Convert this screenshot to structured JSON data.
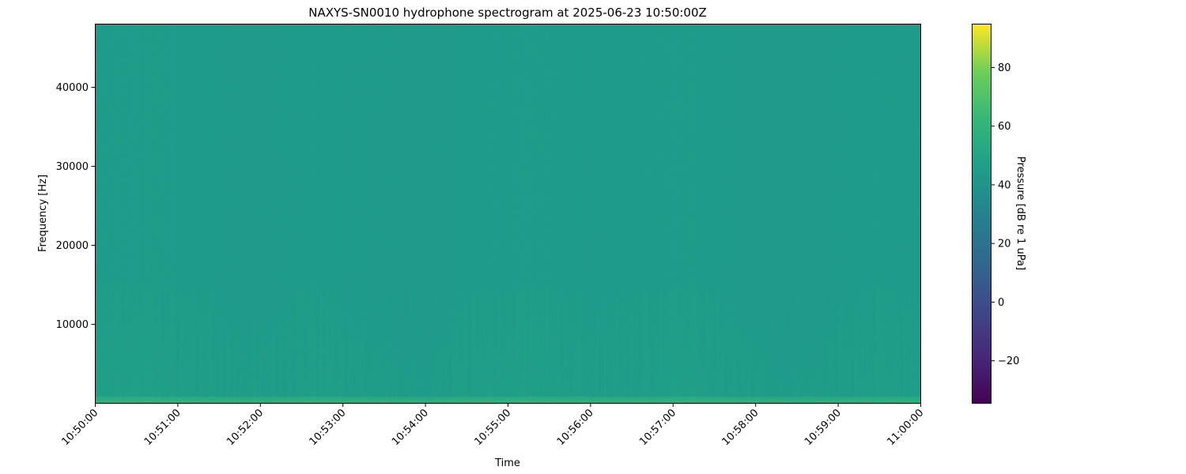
{
  "chart_data": {
    "type": "heatmap",
    "title": "NAXYS-SN0010 hydrophone spectrogram at 2025-06-23 10:50:00Z",
    "xlabel": "Time",
    "ylabel": "Frequency [Hz]",
    "xlim": [
      "10:50:00",
      "11:00:00"
    ],
    "ylim": [
      0,
      48000
    ],
    "xticks": [
      "10:50:00",
      "10:51:00",
      "10:52:00",
      "10:53:00",
      "10:54:00",
      "10:55:00",
      "10:56:00",
      "10:57:00",
      "10:58:00",
      "10:59:00",
      "11:00:00"
    ],
    "yticks": [
      10000,
      20000,
      30000,
      40000
    ],
    "ytick_labels": [
      "10000",
      "20000",
      "30000",
      "40000"
    ],
    "colorbar": {
      "label": "Pressure [dB re 1 uPa]",
      "colormap": "viridis",
      "range": [
        -34.5,
        94.8
      ],
      "ticks": [
        -20,
        0,
        20,
        40,
        60,
        80
      ],
      "tick_labels": [
        "−20",
        "0",
        "20",
        "40",
        "60",
        "80"
      ]
    },
    "typical_level_db": 45,
    "low_frequency_band_level_db": 58,
    "grid": false
  }
}
